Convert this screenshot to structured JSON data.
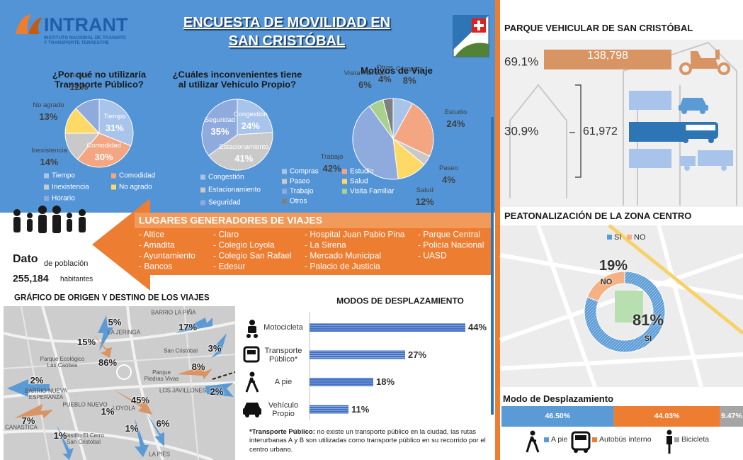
{
  "header": {
    "org": "INTRANT",
    "org_subtitle": "INSTITUTO NACIONAL DE TRÁNSITO Y TRANSPORTE TERRESTRE",
    "title": [
      "ENCUESTA DE MOVILIDAD EN",
      "SAN CRISTÓBAL"
    ]
  },
  "chart_data": [
    {
      "type": "pie",
      "title": "¿Por qué no utilizaría Transporte Público?",
      "categories": [
        "Tiempo",
        "Comodidad",
        "Inexistencia",
        "No agrado",
        "Horario"
      ],
      "values": [
        31,
        30,
        14,
        13,
        12
      ],
      "value_labels": [
        "31%",
        "30%",
        "14%",
        "13%",
        "12%"
      ],
      "colors": [
        "#a9c4eb",
        "#f4a582",
        "#c9c9c9",
        "#ffd966",
        "#8faadc"
      ],
      "legend": "bottom"
    },
    {
      "type": "pie",
      "title": "¿Cuáles inconvenientes tiene al utilizar Vehículo Propio?",
      "categories": [
        "Congestión",
        "Estacionamiento",
        "Seguridad"
      ],
      "values": [
        24,
        41,
        35
      ],
      "value_labels": [
        "24%",
        "41%",
        "35%"
      ],
      "colors": [
        "#a9c4eb",
        "#c9c9c9",
        "#8faadc"
      ],
      "legend": "bottom"
    },
    {
      "type": "pie",
      "title": "Motivos de Viaje",
      "categories": [
        "Compras",
        "Estudio",
        "Paseo",
        "Salud",
        "Trabajo",
        "Visita Familiar",
        "Otros"
      ],
      "values": [
        8,
        24,
        4,
        12,
        42,
        6,
        4
      ],
      "value_labels": [
        "8%",
        "24%",
        "4%",
        "12%",
        "42%",
        "6%",
        "4%"
      ],
      "colors": [
        "#a9c4eb",
        "#f4a582",
        "#c9c9c9",
        "#ffd966",
        "#8faadc",
        "#a9d18e",
        "#7f7f7f"
      ],
      "legend": "bottom"
    },
    {
      "type": "hbar",
      "title": "MODOS DE DESPLAZAMIENTO",
      "categories": [
        "Motocicleta",
        "Transporte Público*",
        "A pie",
        "Vehículo Propio"
      ],
      "values": [
        44,
        27,
        18,
        11
      ],
      "value_labels": [
        "44%",
        "27%",
        "18%",
        "11%"
      ],
      "color": "#4472c4"
    },
    {
      "type": "fleet",
      "title": "PARQUE VEHICULAR DE SAN CRISTÓBAL",
      "categories": [
        null,
        null
      ],
      "values": [
        138798,
        61972
      ],
      "value_labels": [
        "138,798",
        "61,972"
      ],
      "shares": [
        69.1,
        30.9
      ],
      "share_labels": [
        "69.1%",
        "30.9%"
      ],
      "colors": [
        "#d99464",
        "#2e75b6"
      ]
    },
    {
      "type": "donut",
      "title": "PEATONALIZACIÓN DE LA ZONA CENTRO",
      "categories": [
        "SI",
        "NO"
      ],
      "values": [
        81,
        19
      ],
      "value_labels": [
        "81%",
        "19%"
      ],
      "colors": [
        "#5b9bd5",
        "#f4b183"
      ],
      "legend": "top"
    },
    {
      "type": "stacked_bar",
      "title": "Modo de Desplazamiento",
      "series": [
        {
          "name": "A pie",
          "color": "#5b9bd5",
          "values": [
            46.5
          ],
          "value_labels": [
            "46.50%"
          ]
        },
        {
          "name": "Autobús interno",
          "color": "#ed7d31",
          "values": [
            44.03
          ],
          "value_labels": [
            "44.03%"
          ]
        },
        {
          "name": "Bicicleta",
          "color": "#a5a5a5",
          "values": [
            9.47
          ],
          "value_labels": [
            "9.47%"
          ]
        }
      ],
      "legend": "bottom"
    }
  ],
  "lugares": {
    "title": "LUGARES GENERADORES DE VIAJES",
    "columns": [
      [
        "Altice",
        "Amadita",
        "Ayuntamiento",
        "Bancos"
      ],
      [
        "Claro",
        "Colegio Loyola",
        "Colegio San Rafael",
        "Edesur"
      ],
      [
        "Hospital Juan Pablo Pina",
        "La Sirena",
        "Mercado Municipal",
        "Palacio de Justicia"
      ],
      [
        "Parque Central",
        "Policía Nacional",
        "UASD"
      ]
    ]
  },
  "poblacion": {
    "label": "Dato",
    "sublabel": "de población",
    "value": "255,184",
    "unit": "habitantes"
  },
  "od_map": {
    "title": "GRÁFICO DE ORIGEN Y DESTINO DE LOS VIAJES",
    "places": [
      "BARRIO LA PIÑA",
      "LA JERINGA",
      "San Cristóbal",
      "Parque Ecológico Las Caobas",
      "Parque Piedras Vivas",
      "BARRIO NUEVA ESPERANZA",
      "LOS JAVILLONES",
      "PUEBLO NUEVO",
      "LOYOLA",
      "CANASTICA",
      "Castillo El Cerro San Cristobal",
      "LA PIÉS"
    ],
    "flows": [
      "5%",
      "17%",
      "15%",
      "3%",
      "86%",
      "8%",
      "2%",
      "2%",
      "45%",
      "1%",
      "7%",
      "6%",
      "1%",
      "1%"
    ]
  },
  "footnote": {
    "term": "*Transporte Público:",
    "text": "no existe un transporte público en la ciudad, las rutas interurbanas A y B son utilizadas como transporte público en su recorrido por el centro urbano."
  }
}
